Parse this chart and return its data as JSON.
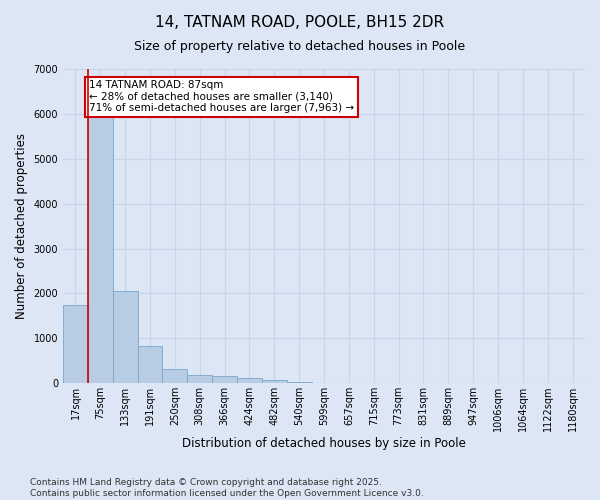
{
  "title": "14, TATNAM ROAD, POOLE, BH15 2DR",
  "subtitle": "Size of property relative to detached houses in Poole",
  "xlabel": "Distribution of detached houses by size in Poole",
  "ylabel": "Number of detached properties",
  "categories": [
    "17sqm",
    "75sqm",
    "133sqm",
    "191sqm",
    "250sqm",
    "308sqm",
    "366sqm",
    "424sqm",
    "482sqm",
    "540sqm",
    "599sqm",
    "657sqm",
    "715sqm",
    "773sqm",
    "831sqm",
    "889sqm",
    "947sqm",
    "1006sqm",
    "1064sqm",
    "1122sqm",
    "1180sqm"
  ],
  "values": [
    1750,
    6100,
    2050,
    820,
    310,
    190,
    160,
    110,
    65,
    25,
    5,
    0,
    0,
    0,
    0,
    0,
    0,
    0,
    0,
    0,
    0
  ],
  "bar_color": "#b8cce4",
  "bar_edge_color": "#7aa6cc",
  "grid_color": "#c8d4e8",
  "background_color": "#dce6f5",
  "vline_color": "#cc0000",
  "annotation_text": "14 TATNAM ROAD: 87sqm\n← 28% of detached houses are smaller (3,140)\n71% of semi-detached houses are larger (7,963) →",
  "annotation_box_edgecolor": "#cc0000",
  "ylim": [
    0,
    7000
  ],
  "yticks": [
    0,
    1000,
    2000,
    3000,
    4000,
    5000,
    6000,
    7000
  ],
  "footer": "Contains HM Land Registry data © Crown copyright and database right 2025.\nContains public sector information licensed under the Open Government Licence v3.0.",
  "title_fontsize": 11,
  "subtitle_fontsize": 9,
  "label_fontsize": 8.5,
  "tick_fontsize": 7,
  "footer_fontsize": 6.5,
  "annot_fontsize": 7.5
}
